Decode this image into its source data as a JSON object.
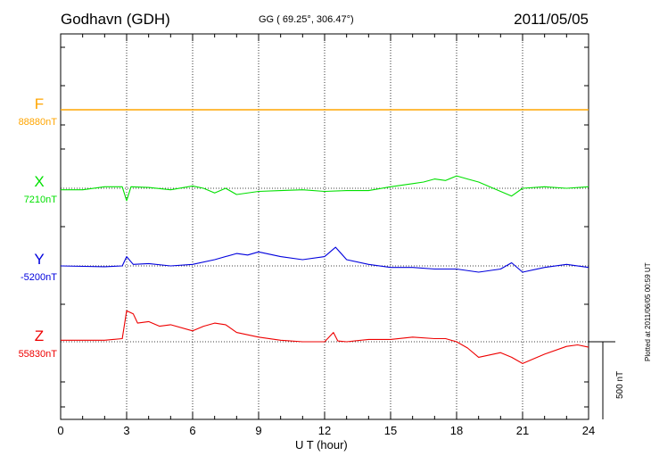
{
  "header": {
    "station": "Godhavn (GDH)",
    "coords": "GG ( 69.25°, 306.47°)",
    "date": "2011/05/05"
  },
  "side_note": "Plotted at 2011/06/05 00:59 UT",
  "scale_label": "500 nT",
  "colors": {
    "F": "#ffa500",
    "X": "#00e000",
    "Y": "#0000dd",
    "Z": "#ee0000"
  },
  "chart_data": {
    "type": "line",
    "xlabel": "U T (hour)",
    "xlim": [
      0,
      24
    ],
    "xticks": [
      "0",
      "3",
      "6",
      "9",
      "12",
      "15",
      "18",
      "21",
      "24"
    ],
    "grid": true,
    "scale_bar_nT": 500,
    "series": [
      {
        "name": "F",
        "baseline": "88880nT",
        "points": [
          [
            0,
            0
          ],
          [
            24,
            0
          ]
        ]
      },
      {
        "name": "X",
        "baseline": "7210nT",
        "points": [
          [
            0,
            -10
          ],
          [
            1,
            -10
          ],
          [
            2,
            10
          ],
          [
            2.8,
            10
          ],
          [
            3,
            -80
          ],
          [
            3.2,
            10
          ],
          [
            4,
            5
          ],
          [
            5,
            -10
          ],
          [
            6,
            15
          ],
          [
            6.5,
            0
          ],
          [
            7,
            -30
          ],
          [
            7.5,
            0
          ],
          [
            8,
            -40
          ],
          [
            9,
            -20
          ],
          [
            10,
            -15
          ],
          [
            11,
            -10
          ],
          [
            12,
            -20
          ],
          [
            13,
            -15
          ],
          [
            14,
            -15
          ],
          [
            15,
            10
          ],
          [
            16,
            30
          ],
          [
            16.5,
            40
          ],
          [
            17,
            60
          ],
          [
            17.5,
            50
          ],
          [
            18,
            80
          ],
          [
            18.5,
            60
          ],
          [
            19,
            40
          ],
          [
            20,
            -20
          ],
          [
            20.5,
            -50
          ],
          [
            21,
            0
          ],
          [
            22,
            10
          ],
          [
            23,
            0
          ],
          [
            24,
            10
          ]
        ]
      },
      {
        "name": "Y",
        "baseline": "-5200nT",
        "points": [
          [
            0,
            0
          ],
          [
            2,
            -5
          ],
          [
            2.8,
            0
          ],
          [
            3,
            60
          ],
          [
            3.3,
            10
          ],
          [
            4,
            15
          ],
          [
            5,
            0
          ],
          [
            6,
            10
          ],
          [
            7,
            40
          ],
          [
            8,
            80
          ],
          [
            8.5,
            70
          ],
          [
            9,
            90
          ],
          [
            10,
            60
          ],
          [
            11,
            40
          ],
          [
            12,
            60
          ],
          [
            12.5,
            120
          ],
          [
            13,
            40
          ],
          [
            14,
            10
          ],
          [
            15,
            -10
          ],
          [
            16,
            -10
          ],
          [
            17,
            -20
          ],
          [
            18,
            -20
          ],
          [
            19,
            -40
          ],
          [
            20,
            -20
          ],
          [
            20.5,
            20
          ],
          [
            21,
            -40
          ],
          [
            22,
            -10
          ],
          [
            23,
            10
          ],
          [
            24,
            -10
          ]
        ]
      },
      {
        "name": "Z",
        "baseline": "55830nT",
        "points": [
          [
            0,
            10
          ],
          [
            1,
            10
          ],
          [
            2,
            10
          ],
          [
            2.8,
            20
          ],
          [
            3,
            200
          ],
          [
            3.3,
            180
          ],
          [
            3.5,
            120
          ],
          [
            4,
            130
          ],
          [
            4.5,
            100
          ],
          [
            5,
            110
          ],
          [
            6,
            70
          ],
          [
            6.5,
            100
          ],
          [
            7,
            120
          ],
          [
            7.5,
            110
          ],
          [
            8,
            60
          ],
          [
            9,
            30
          ],
          [
            10,
            10
          ],
          [
            11,
            0
          ],
          [
            12,
            0
          ],
          [
            12.4,
            60
          ],
          [
            12.6,
            5
          ],
          [
            13,
            0
          ],
          [
            14,
            15
          ],
          [
            15,
            15
          ],
          [
            16,
            30
          ],
          [
            17,
            20
          ],
          [
            17.5,
            20
          ],
          [
            18,
            0
          ],
          [
            18.5,
            -40
          ],
          [
            19,
            -100
          ],
          [
            20,
            -70
          ],
          [
            20.5,
            -100
          ],
          [
            21,
            -140
          ],
          [
            21.5,
            -110
          ],
          [
            22,
            -80
          ],
          [
            23,
            -30
          ],
          [
            23.5,
            -20
          ],
          [
            24,
            -35
          ]
        ]
      }
    ]
  }
}
